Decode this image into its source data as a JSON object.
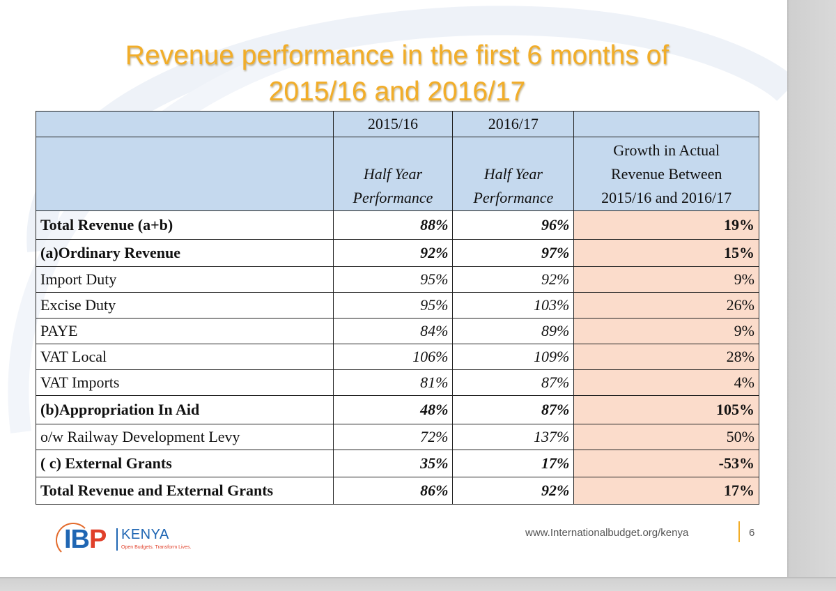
{
  "slide": {
    "title_line1": "Revenue performance in the first 6 months of",
    "title_line2": "2015/16 and 2016/17"
  },
  "table": {
    "header": {
      "year1": "2015/16",
      "year2": "2016/17",
      "sub1": [
        "Half Year",
        "Performance"
      ],
      "sub2": [
        "Half Year",
        "Performance"
      ],
      "growth": [
        "Growth in Actual",
        "Revenue Between",
        "2015/16 and 2016/17"
      ]
    },
    "rows": [
      {
        "label": "Total Revenue (a+b)",
        "v2015": "88%",
        "v2016": "96%",
        "growth": "19%",
        "bold": true
      },
      {
        "label": "(a)Ordinary Revenue",
        "v2015": "92%",
        "v2016": "97%",
        "growth": "15%",
        "bold": true
      },
      {
        "label": "Import Duty",
        "v2015": "95%",
        "v2016": "92%",
        "growth": "9%",
        "bold": false
      },
      {
        "label": "Excise Duty",
        "v2015": "95%",
        "v2016": "103%",
        "growth": "26%",
        "bold": false
      },
      {
        "label": "PAYE",
        "v2015": "84%",
        "v2016": "89%",
        "growth": "9%",
        "bold": false
      },
      {
        "label": "VAT Local",
        "v2015": "106%",
        "v2016": "109%",
        "growth": "28%",
        "bold": false
      },
      {
        "label": "VAT Imports",
        "v2015": "81%",
        "v2016": "87%",
        "growth": "4%",
        "bold": false
      },
      {
        "label": "(b)Appropriation In Aid",
        "v2015": "48%",
        "v2016": "87%",
        "growth": "105%",
        "bold": true
      },
      {
        "label": "o/w Railway Development Levy",
        "v2015": "72%",
        "v2016": "137%",
        "growth": "50%",
        "bold": false
      },
      {
        "label": "( c) External Grants",
        "v2015": "35%",
        "v2016": "17%",
        "growth": "-53%",
        "bold": true
      },
      {
        "label": "Total Revenue and External Grants",
        "v2015": "86%",
        "v2016": "92%",
        "growth": "17%",
        "bold": true
      }
    ]
  },
  "footer": {
    "url": "www.Internationalbudget.org/kenya",
    "page_number": "6",
    "logo_ibp": "IB",
    "logo_p": "P",
    "logo_kenya": "KENYA",
    "logo_tagline": "Open Budgets. Transform Lives."
  },
  "colors": {
    "title": "#f2ad28",
    "header_bg": "#c5d9ee",
    "growth_bg": "#fbdccb",
    "logo_blue": "#1f66b3",
    "logo_red": "#e0402a"
  }
}
